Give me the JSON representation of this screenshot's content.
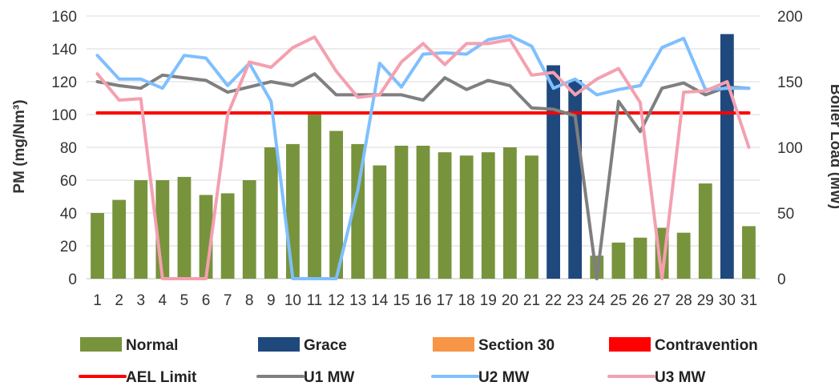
{
  "chart_data": {
    "type": "bar",
    "categories": [
      "1",
      "2",
      "3",
      "4",
      "5",
      "6",
      "7",
      "8",
      "9",
      "10",
      "11",
      "12",
      "13",
      "14",
      "15",
      "16",
      "17",
      "18",
      "19",
      "20",
      "21",
      "22",
      "23",
      "24",
      "25",
      "26",
      "27",
      "28",
      "29",
      "30",
      "31"
    ],
    "ylabel": "PM (mg/Nm³)",
    "y2label": "Boiler Load (MW)",
    "ylim": [
      0,
      160
    ],
    "yticks": [
      "0",
      "20",
      "40",
      "60",
      "80",
      "100",
      "120",
      "140",
      "160"
    ],
    "y2lim": [
      0,
      200
    ],
    "y2ticks": [
      "0",
      "50",
      "100",
      "150",
      "200"
    ],
    "grid": true,
    "legend_position": "bottom",
    "bar_categories": [
      "Normal",
      "Normal",
      "Normal",
      "Normal",
      "Normal",
      "Normal",
      "Normal",
      "Normal",
      "Normal",
      "Normal",
      "Normal",
      "Normal",
      "Normal",
      "Normal",
      "Normal",
      "Normal",
      "Normal",
      "Normal",
      "Normal",
      "Normal",
      "Normal",
      "Grace",
      "Grace",
      "Normal",
      "Normal",
      "Normal",
      "Normal",
      "Normal",
      "Normal",
      "Grace",
      "Normal"
    ],
    "bars": [
      40,
      48,
      60,
      60,
      62,
      51,
      52,
      60,
      80,
      82,
      100,
      90,
      82,
      69,
      81,
      81,
      77,
      75,
      77,
      80,
      75,
      130,
      121,
      14,
      22,
      25,
      31,
      28,
      58,
      149,
      32
    ],
    "series": [
      {
        "name": "Normal",
        "kind": "bar",
        "color": "#77933c"
      },
      {
        "name": "Grace",
        "kind": "bar",
        "color": "#1f497d"
      },
      {
        "name": "Section 30",
        "kind": "bar",
        "color": "#f79646"
      },
      {
        "name": "Contravention",
        "kind": "bar",
        "color": "#ff0000"
      },
      {
        "name": "AEL Limit",
        "kind": "line",
        "axis": "left",
        "color": "#ff0000",
        "values": [
          101,
          101,
          101,
          101,
          101,
          101,
          101,
          101,
          101,
          101,
          101,
          101,
          101,
          101,
          101,
          101,
          101,
          101,
          101,
          101,
          101,
          101,
          101,
          101,
          101,
          101,
          101,
          101,
          101,
          101,
          101
        ]
      },
      {
        "name": "U1 MW",
        "kind": "line",
        "axis": "right",
        "color": "#7f7f7f",
        "values": [
          150,
          147,
          145,
          155,
          153,
          151,
          142,
          146,
          150,
          147,
          156,
          140,
          140,
          140,
          140,
          136,
          153,
          144,
          151,
          147,
          130,
          129,
          124,
          0,
          135,
          112,
          145,
          149,
          140,
          146,
          145
        ]
      },
      {
        "name": "U2 MW",
        "kind": "line",
        "axis": "right",
        "color": "#7fbfff",
        "values": [
          170,
          152,
          152,
          145,
          170,
          168,
          147,
          164,
          135,
          0,
          0,
          0,
          68,
          164,
          146,
          171,
          172,
          171,
          182,
          185,
          177,
          145,
          152,
          140,
          144,
          147,
          176,
          183,
          144,
          145,
          145
        ]
      },
      {
        "name": "U3 MW",
        "kind": "line",
        "axis": "right",
        "color": "#f4a0b0",
        "values": [
          156,
          136,
          137,
          0,
          0,
          0,
          125,
          165,
          161,
          176,
          184,
          158,
          138,
          140,
          165,
          179,
          163,
          179,
          179,
          182,
          155,
          157,
          140,
          152,
          160,
          134,
          0,
          142,
          143,
          150,
          100
        ]
      }
    ]
  }
}
